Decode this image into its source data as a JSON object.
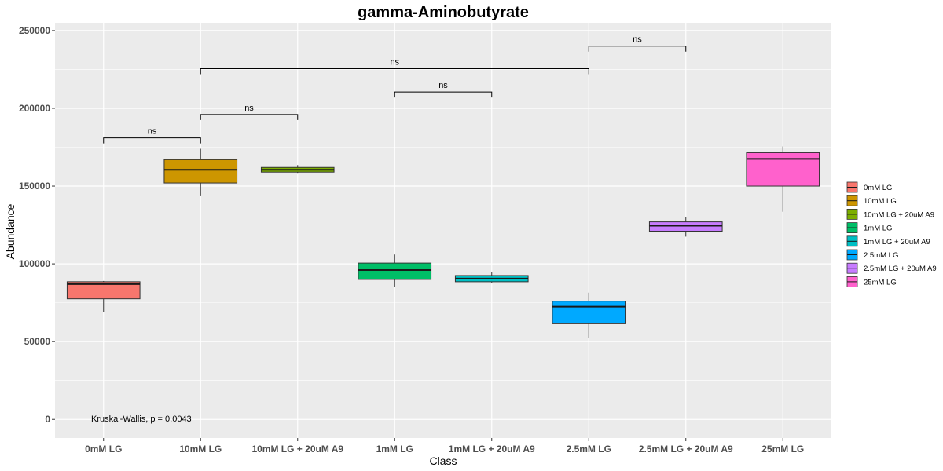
{
  "chart_data": {
    "type": "box",
    "title": "gamma-Aminobutyrate",
    "xlabel": "Class",
    "ylabel": "Abundance",
    "ylim": [
      -12000,
      255000
    ],
    "yticks": [
      0,
      50000,
      100000,
      150000,
      200000,
      250000
    ],
    "ytick_labels": [
      "0",
      "50000",
      "100000",
      "150000",
      "200000",
      "250000"
    ],
    "grid": true,
    "legend_position": "right",
    "categories": [
      "0mM LG",
      "10mM LG",
      "10mM LG + 20uM A9",
      "1mM LG",
      "1mM LG + 20uM A9",
      "2.5mM LG",
      "2.5mM LG + 20uM A9",
      "25mM LG"
    ],
    "colors": [
      "#F8766D",
      "#CD9600",
      "#7CAE00",
      "#00BE67",
      "#00BFC4",
      "#00A9FF",
      "#C77CFF",
      "#FF61CC"
    ],
    "boxes": [
      {
        "name": "0mM LG",
        "min": 69000,
        "q1": 77500,
        "median": 87000,
        "q3": 88500,
        "max": 89000
      },
      {
        "name": "10mM LG",
        "min": 143500,
        "q1": 152000,
        "median": 160500,
        "q3": 167000,
        "max": 174000
      },
      {
        "name": "10mM LG + 20uM A9",
        "min": 158000,
        "q1": 159000,
        "median": 160500,
        "q3": 162000,
        "max": 163500
      },
      {
        "name": "1mM LG",
        "min": 85000,
        "q1": 90000,
        "median": 96000,
        "q3": 100500,
        "max": 106000
      },
      {
        "name": "1mM LG + 20uM A9",
        "min": 87500,
        "q1": 88500,
        "median": 90500,
        "q3": 92500,
        "max": 95000
      },
      {
        "name": "2.5mM LG",
        "min": 52500,
        "q1": 61500,
        "median": 72500,
        "q3": 76000,
        "max": 81500
      },
      {
        "name": "2.5mM LG + 20uM A9",
        "min": 117500,
        "q1": 121000,
        "median": 124500,
        "q3": 127000,
        "max": 130000
      },
      {
        "name": "25mM LG",
        "min": 133500,
        "q1": 150000,
        "median": 167500,
        "q3": 171500,
        "max": 175500
      }
    ],
    "comparisons": [
      {
        "from": "0mM LG",
        "to": "10mM LG",
        "y": 181000,
        "label": "ns"
      },
      {
        "from": "10mM LG",
        "to": "10mM LG + 20uM A9",
        "y": 196000,
        "label": "ns"
      },
      {
        "from": "1mM LG",
        "to": "1mM LG + 20uM A9",
        "y": 210500,
        "label": "ns"
      },
      {
        "from": "10mM LG",
        "to": "2.5mM LG",
        "y": 225500,
        "label": "ns"
      },
      {
        "from": "2.5mM LG",
        "to": "2.5mM LG + 20uM A9",
        "y": 240000,
        "label": "ns"
      }
    ],
    "annotation": "Kruskal-Wallis, p = 0.0043"
  }
}
